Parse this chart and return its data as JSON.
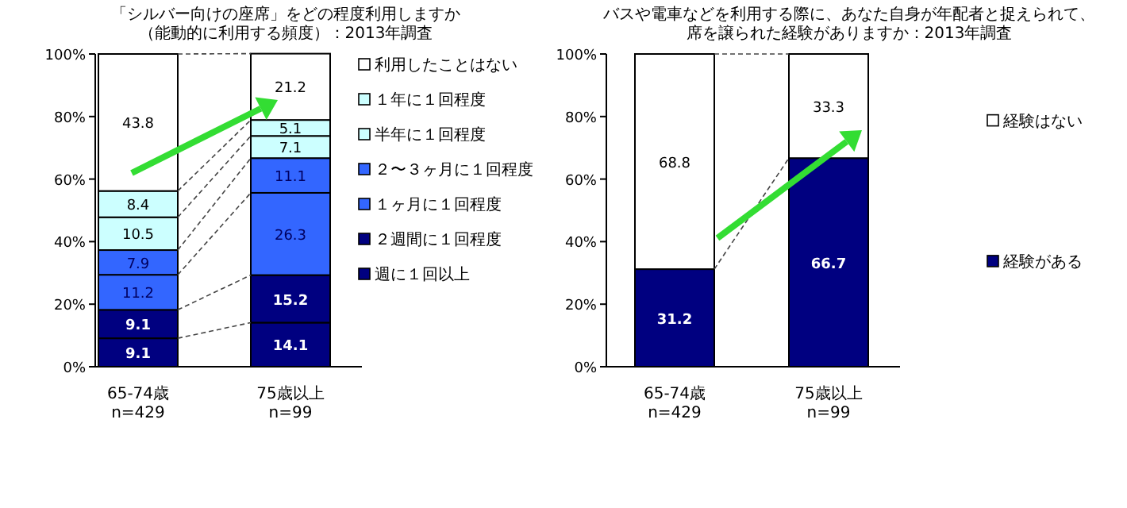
{
  "chart_data": [
    {
      "type": "bar",
      "stacked": true,
      "title": "「シルバー向けの座席」をどの程度利用しますか",
      "subtitle": "（能動的に利用する頻度）：2013年調査",
      "categories": [
        "65-74歳\nn=429",
        "75歳以上\nn=99"
      ],
      "series": [
        {
          "name": "週に１回以上",
          "color": "#000080",
          "values": [
            9.1,
            14.1
          ]
        },
        {
          "name": "２週間に１回程度",
          "color": "#000080",
          "values": [
            9.1,
            15.2
          ]
        },
        {
          "name": "１ヶ月に１回程度",
          "color": "#3366ff",
          "values": [
            11.2,
            26.3
          ]
        },
        {
          "name": "２〜３ヶ月に１回程度",
          "color": "#3366ff",
          "values": [
            7.9,
            11.1
          ]
        },
        {
          "name": "半年に１回程度",
          "color": "#ccffff",
          "values": [
            10.5,
            7.1
          ]
        },
        {
          "name": "１年に１回程度",
          "color": "#ccffff",
          "values": [
            8.4,
            5.1
          ]
        },
        {
          "name": "利用したことはない",
          "color": "#ffffff",
          "values": [
            43.8,
            21.2
          ]
        }
      ],
      "ylim": [
        0,
        100
      ],
      "yticks": [
        {
          "value": 0,
          "label": "0%"
        },
        {
          "value": 20,
          "label": "20%"
        },
        {
          "value": 40,
          "label": "40%"
        },
        {
          "value": 60,
          "label": "60%"
        },
        {
          "value": 80,
          "label": "80%"
        },
        {
          "value": 100,
          "label": "100%"
        }
      ],
      "data_labels": true,
      "legend": "right",
      "grid": false
    },
    {
      "type": "bar",
      "stacked": true,
      "title": "バスや電車などを利用する際に、あなた自身が年配者と捉えられて、",
      "subtitle": "席を譲られた経験がありますか：2013年調査",
      "categories": [
        "65-74歳\nn=429",
        "75歳以上\nn=99"
      ],
      "series": [
        {
          "name": "経験がある",
          "color": "#000080",
          "values": [
            31.2,
            66.7
          ]
        },
        {
          "name": "経験はない",
          "color": "#ffffff",
          "values": [
            68.8,
            33.3
          ]
        }
      ],
      "ylim": [
        0,
        100
      ],
      "yticks": [
        {
          "value": 0,
          "label": "0%"
        },
        {
          "value": 20,
          "label": "20%"
        },
        {
          "value": 40,
          "label": "40%"
        },
        {
          "value": 60,
          "label": "60%"
        },
        {
          "value": 80,
          "label": "80%"
        },
        {
          "value": 100,
          "label": "100%"
        }
      ],
      "data_labels": true,
      "legend": "right",
      "grid": false
    }
  ]
}
